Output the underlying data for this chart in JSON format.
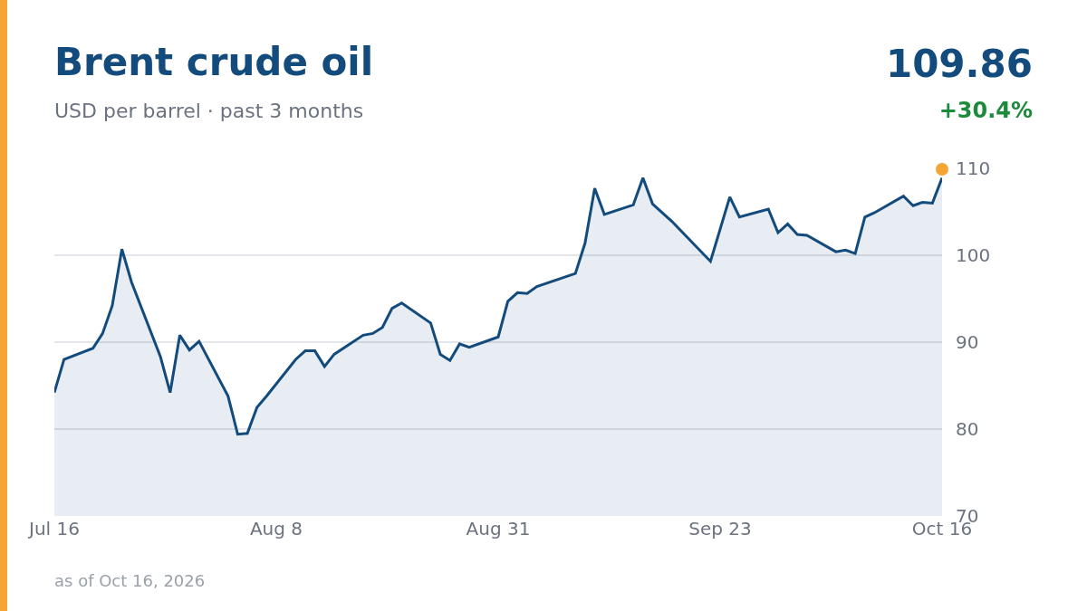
{
  "chart_data": {
    "type": "area",
    "title": "Brent crude oil",
    "subtitle": "USD per barrel · past 3 months",
    "annotations": [
      "109.86",
      "+30.4%",
      "as of Oct 16, 2026"
    ],
    "x": [
      "2026-07-16",
      "2026-07-17",
      "2026-07-20",
      "2026-07-21",
      "2026-07-22",
      "2026-07-23",
      "2026-07-24",
      "2026-07-27",
      "2026-07-28",
      "2026-07-29",
      "2026-07-30",
      "2026-07-31",
      "2026-08-03",
      "2026-08-04",
      "2026-08-05",
      "2026-08-06",
      "2026-08-07",
      "2026-08-10",
      "2026-08-11",
      "2026-08-12",
      "2026-08-13",
      "2026-08-14",
      "2026-08-17",
      "2026-08-18",
      "2026-08-19",
      "2026-08-20",
      "2026-08-21",
      "2026-08-24",
      "2026-08-25",
      "2026-08-26",
      "2026-08-27",
      "2026-08-28",
      "2026-08-31",
      "2026-09-01",
      "2026-09-02",
      "2026-09-03",
      "2026-09-04",
      "2026-09-08",
      "2026-09-09",
      "2026-09-10",
      "2026-09-11",
      "2026-09-14",
      "2026-09-15",
      "2026-09-16",
      "2026-09-18",
      "2026-09-22",
      "2026-09-24",
      "2026-09-25",
      "2026-09-28",
      "2026-09-29",
      "2026-09-30",
      "2026-10-01",
      "2026-10-02",
      "2026-10-05",
      "2026-10-06",
      "2026-10-07",
      "2026-10-08",
      "2026-10-09",
      "2026-10-12",
      "2026-10-13",
      "2026-10-14",
      "2026-10-15",
      "2026-10-16"
    ],
    "series": [
      {
        "color": "#134b7d",
        "values": [
          84.2,
          88.0,
          89.3,
          91.0,
          94.2,
          100.7,
          96.9,
          88.3,
          84.2,
          90.8,
          89.1,
          90.1,
          83.8,
          79.4,
          79.5,
          82.5,
          83.8,
          88.0,
          89.0,
          89.0,
          87.2,
          88.6,
          90.8,
          91.0,
          91.7,
          93.9,
          94.5,
          92.2,
          88.6,
          87.9,
          89.8,
          89.4,
          90.6,
          94.7,
          95.7,
          95.6,
          96.4,
          97.9,
          101.4,
          107.7,
          104.7,
          105.8,
          108.9,
          105.9,
          103.9,
          99.3,
          106.7,
          104.4,
          105.3,
          102.6,
          103.6,
          102.4,
          102.3,
          100.4,
          100.6,
          100.2,
          104.4,
          104.9,
          106.8,
          105.7,
          106.1,
          106.0,
          108.9
        ]
      },
      {
        "type": "scatter",
        "color": "#f5a533",
        "x": [
          "2026-10-16"
        ],
        "values": [
          109.9
        ],
        "marker": "circle"
      }
    ],
    "xlim": [
      "2026-07-16",
      "2026-10-16"
    ],
    "xticks": [
      {
        "value": "2026-07-16",
        "label": "Jul 16"
      },
      {
        "value": "2026-08-08",
        "label": "Aug 8"
      },
      {
        "value": "2026-08-31",
        "label": "Aug 31"
      },
      {
        "value": "2026-09-23",
        "label": "Sep 23"
      },
      {
        "value": "2026-10-16",
        "label": "Oct 16"
      }
    ],
    "ylim": [
      70,
      110
    ],
    "yticks": [
      70,
      80,
      90,
      100,
      110
    ],
    "grid": "y",
    "marker": "none",
    "line_style": "solid"
  }
}
